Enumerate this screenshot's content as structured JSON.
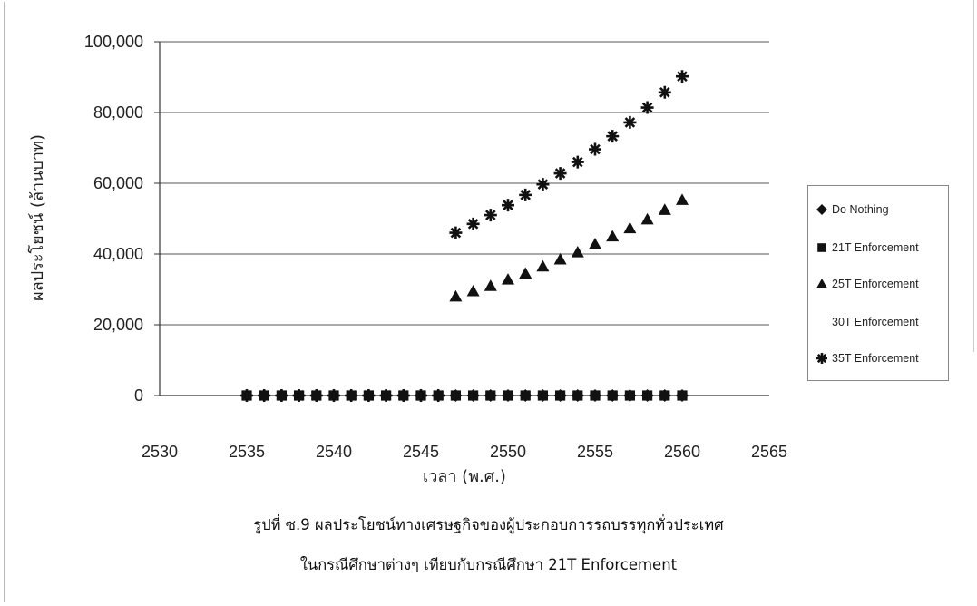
{
  "chart_data": {
    "type": "scatter",
    "title": "",
    "xlabel": "เวลา (พ.ศ.)",
    "ylabel": "ผลประโยชน์ (ล้านบาท)",
    "xlim": [
      2530,
      2565
    ],
    "ylim": [
      0,
      100000
    ],
    "x_ticks": [
      "2530",
      "2535",
      "2540",
      "2545",
      "2550",
      "2555",
      "2560",
      "2565"
    ],
    "y_ticks": [
      "0",
      "20,000",
      "40,000",
      "60,000",
      "80,000",
      "100,000"
    ],
    "grid": "horizontal",
    "legend_position": "right",
    "series": [
      {
        "name": "Do Nothing",
        "marker": "diamond",
        "color": "#111111",
        "x": [
          2535,
          2536,
          2537,
          2538,
          2539,
          2540,
          2541,
          2542,
          2543,
          2544,
          2545,
          2546,
          2547,
          2548,
          2549,
          2550,
          2551,
          2552,
          2553,
          2554,
          2555,
          2556,
          2557,
          2558,
          2559,
          2560
        ],
        "y": [
          0,
          0,
          0,
          0,
          0,
          0,
          0,
          0,
          0,
          0,
          0,
          0,
          0,
          0,
          0,
          0,
          0,
          0,
          0,
          0,
          0,
          0,
          0,
          0,
          0,
          0
        ]
      },
      {
        "name": "21T Enforcement",
        "marker": "square",
        "color": "#111111",
        "x": [
          2535,
          2536,
          2537,
          2538,
          2539,
          2540,
          2541,
          2542,
          2543,
          2544,
          2545,
          2546,
          2547,
          2548,
          2549,
          2550,
          2551,
          2552,
          2553,
          2554,
          2555,
          2556,
          2557,
          2558,
          2559,
          2560
        ],
        "y": [
          0,
          0,
          0,
          0,
          0,
          0,
          0,
          0,
          0,
          0,
          0,
          0,
          0,
          0,
          0,
          0,
          0,
          0,
          0,
          0,
          0,
          0,
          0,
          0,
          0,
          0
        ]
      },
      {
        "name": "25T Enforcement",
        "marker": "triangle",
        "color": "#111111",
        "x": [
          2547,
          2548,
          2549,
          2550,
          2551,
          2552,
          2553,
          2554,
          2555,
          2556,
          2557,
          2558,
          2559,
          2560
        ],
        "y": [
          28000,
          29500,
          31000,
          32800,
          34500,
          36500,
          38500,
          40500,
          42800,
          45000,
          47300,
          49800,
          52500,
          55300
        ]
      },
      {
        "name": "30T Enforcement",
        "marker": "none",
        "color": "#ffffff",
        "x": [],
        "y": []
      },
      {
        "name": "35T Enforcement",
        "marker": "star",
        "color": "#111111",
        "x": [
          2535,
          2536,
          2537,
          2538,
          2539,
          2540,
          2541,
          2542,
          2543,
          2544,
          2545,
          2546,
          2547,
          2548,
          2549,
          2550,
          2551,
          2552,
          2553,
          2554,
          2555,
          2556,
          2557,
          2558,
          2559,
          2560
        ],
        "y": [
          0,
          0,
          0,
          0,
          0,
          0,
          0,
          0,
          0,
          0,
          0,
          0,
          46000,
          48500,
          51000,
          53800,
          56700,
          59700,
          62800,
          66000,
          69600,
          73300,
          77200,
          81400,
          85700,
          90200
        ]
      }
    ]
  },
  "caption": {
    "line1": "รูปที่ ซ.9  ผลประโยชน์ทางเศรษฐกิจของผู้ประกอบการรถบรรทุกทั่วประเทศ",
    "line2": "ในกรณีศึกษาต่างๆ เทียบกับกรณีศึกษา 21T Enforcement"
  }
}
